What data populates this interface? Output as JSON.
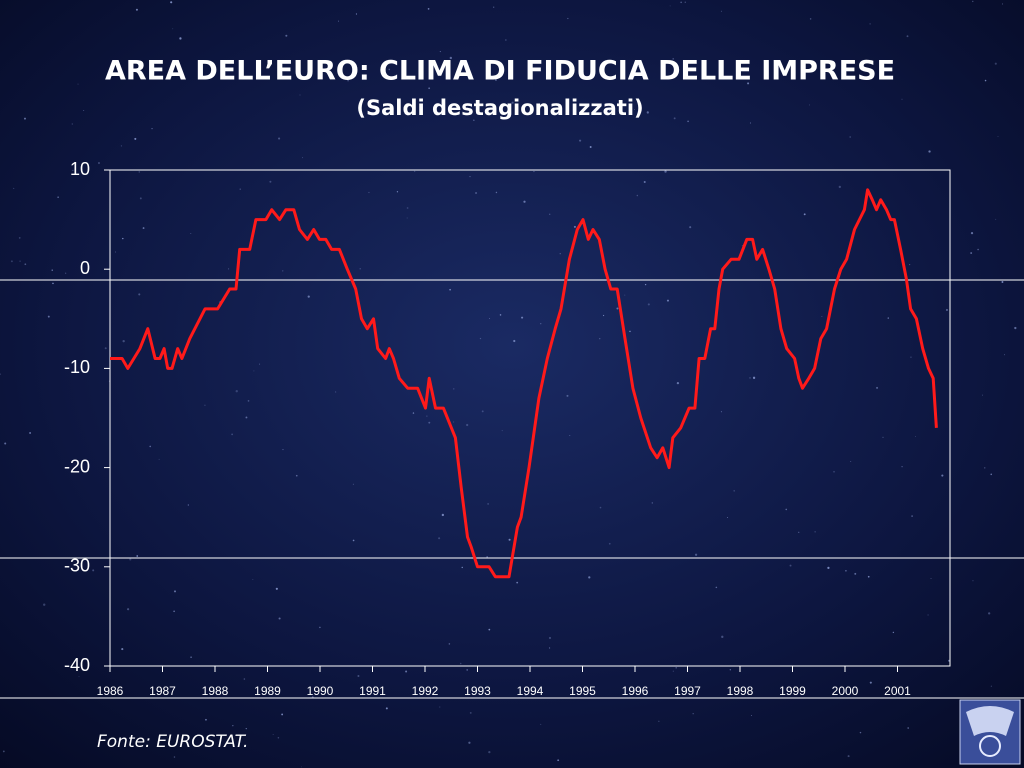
{
  "chart_data": {
    "type": "line",
    "title": "AREA DELL’EURO: CLIMA DI FIDUCIA DELLE IMPRESE",
    "subtitle": "(Saldi destagionalizzati)",
    "source": "Fonte:  EUROSTAT.",
    "color": "#ff1a1a",
    "x": [
      1986.0,
      1986.23,
      1986.34,
      1986.57,
      1986.72,
      1986.86,
      1986.95,
      1987.03,
      1987.1,
      1987.18,
      1987.29,
      1987.37,
      1987.52,
      1987.81,
      1988.05,
      1988.28,
      1988.4,
      1988.47,
      1988.66,
      1988.78,
      1988.97,
      1989.08,
      1989.23,
      1989.35,
      1989.5,
      1989.61,
      1989.76,
      1989.88,
      1989.99,
      1990.11,
      1990.22,
      1990.37,
      1990.52,
      1990.68,
      1990.79,
      1990.9,
      1991.02,
      1991.1,
      1991.25,
      1991.32,
      1991.4,
      1991.51,
      1991.67,
      1991.86,
      1992.01,
      1992.08,
      1992.2,
      1992.35,
      1992.58,
      1992.69,
      1992.81,
      1992.88,
      1993.0,
      1993.22,
      1993.34,
      1993.6,
      1993.76,
      1993.83,
      1993.98,
      1994.17,
      1994.33,
      1994.48,
      1994.59,
      1994.75,
      1994.9,
      1995.01,
      1995.11,
      1995.2,
      1995.32,
      1995.43,
      1995.54,
      1995.66,
      1995.81,
      1995.96,
      1996.11,
      1996.3,
      1996.42,
      1996.53,
      1996.65,
      1996.72,
      1996.87,
      1997.03,
      1997.14,
      1997.22,
      1997.33,
      1997.44,
      1997.52,
      1997.6,
      1997.67,
      1997.83,
      1997.98,
      1998.13,
      1998.24,
      1998.32,
      1998.43,
      1998.55,
      1998.66,
      1998.78,
      1998.89,
      1999.04,
      1999.12,
      1999.19,
      1999.31,
      1999.42,
      1999.54,
      1999.65,
      1999.8,
      1999.92,
      2000.03,
      2000.18,
      2000.37,
      2000.43,
      2000.52,
      2000.6,
      2000.68,
      2000.79,
      2000.87,
      2000.94,
      2001.06,
      2001.17,
      2001.25,
      2001.36,
      2001.48,
      2001.59,
      2001.68,
      2001.74
    ],
    "values": [
      -9,
      -9,
      -10,
      -8,
      -6,
      -9,
      -9,
      -8,
      -10,
      -10,
      -8,
      -9,
      -7,
      -4,
      -4,
      -2,
      -2,
      2,
      2,
      5,
      5,
      6,
      5,
      6,
      6,
      4,
      3,
      4,
      3,
      3,
      2,
      2,
      0,
      -2,
      -5,
      -6,
      -5,
      -8,
      -9,
      -8,
      -9,
      -11,
      -12,
      -12,
      -14,
      -11,
      -14,
      -14,
      -17,
      -22,
      -27,
      -28,
      -30,
      -30,
      -31,
      -31,
      -26,
      -25,
      -20,
      -13,
      -9,
      -6,
      -4,
      1,
      4,
      5,
      3,
      4,
      3,
      0,
      -2,
      -2,
      -7,
      -12,
      -15,
      -18,
      -19,
      -18,
      -20,
      -17,
      -16,
      -14,
      -14,
      -9,
      -9,
      -6,
      -6,
      -2,
      0,
      1,
      1,
      3,
      3,
      1,
      2,
      0,
      -2,
      -6,
      -8,
      -9,
      -11,
      -12,
      -11,
      -10,
      -7,
      -6,
      -2,
      0,
      1,
      4,
      6,
      8,
      7,
      6,
      7,
      6,
      5,
      5,
      2,
      -1,
      -4,
      -5,
      -8,
      -10,
      -11,
      -16
    ],
    "xlim": [
      1986,
      2002
    ],
    "xticks": [
      1986,
      1987,
      1988,
      1989,
      1990,
      1991,
      1992,
      1993,
      1994,
      1995,
      1996,
      1997,
      1998,
      1999,
      2000,
      2001
    ],
    "ylim": [
      -40,
      10
    ],
    "yticks": [
      -40,
      -30,
      -20,
      -10,
      0,
      10
    ]
  }
}
